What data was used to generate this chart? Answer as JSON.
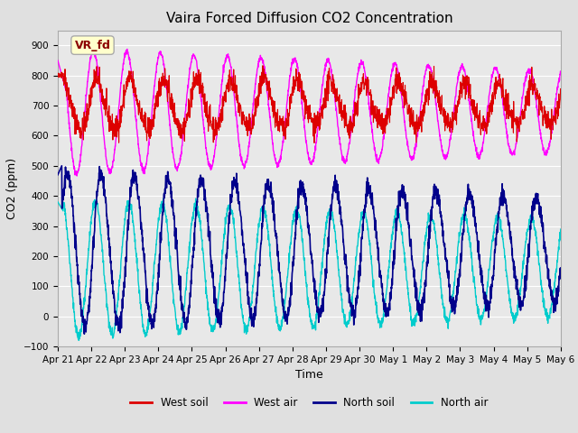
{
  "title": "Vaira Forced Diffusion CO2 Concentration",
  "xlabel": "Time",
  "ylabel": "CO2 (ppm)",
  "ylim": [
    -100,
    950
  ],
  "yticks": [
    -100,
    0,
    100,
    200,
    300,
    400,
    500,
    600,
    700,
    800,
    900
  ],
  "xtick_labels": [
    "Apr 21",
    "Apr 22",
    "Apr 23",
    "Apr 24",
    "Apr 25",
    "Apr 26",
    "Apr 27",
    "Apr 28",
    "Apr 29",
    "Apr 30",
    "May 1",
    "May 2",
    "May 3",
    "May 4",
    "May 5",
    "May 6"
  ],
  "legend_labels": [
    "West soil",
    "West air",
    "North soil",
    "North air"
  ],
  "legend_colors": [
    "#dd0000",
    "#ff00ff",
    "#00008b",
    "#00cccc"
  ],
  "annotation_text": "VR_fd",
  "annotation_color": "#8b0000",
  "annotation_bg": "#ffffcc",
  "bg_color": "#e0e0e0",
  "plot_bg": "#e8e8e8",
  "grid_color": "#ffffff",
  "n_days": 15,
  "figsize": [
    6.4,
    4.8
  ],
  "dpi": 100
}
